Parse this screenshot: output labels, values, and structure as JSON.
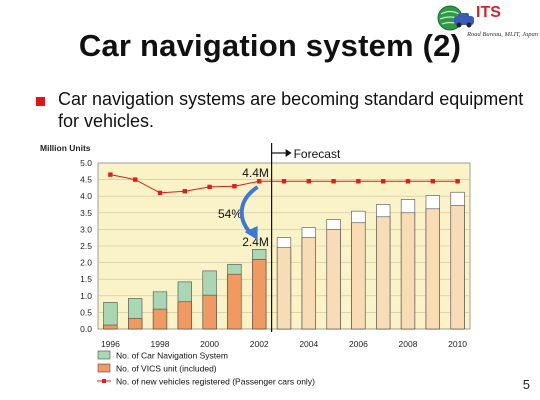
{
  "header": {
    "logo_text": "ITS",
    "logo_subtitle": "Road Bureau, MLIT, Japan"
  },
  "slide": {
    "title": "Car navigation system (2)",
    "bullet": "Car navigation systems are becoming standard equipment for vehicles.",
    "page_number": "5"
  },
  "colors": {
    "nav_fill": "#a9d7b4",
    "vics_fill": "#f09a62",
    "nav_forecast_fill": "#ffffff",
    "vics_forecast_fill": "#f7dcb6",
    "registered_line": "#e31b1b",
    "plot_background": "#fbf3c8",
    "accent_blue": "#3c79d3"
  },
  "chart_data": {
    "type": "bar",
    "ylabel": "Million Units",
    "ylim": [
      0,
      5.0
    ],
    "yticks": [
      "0.0",
      "0.5",
      "1.0",
      "1.5",
      "2.0",
      "2.5",
      "3.0",
      "3.5",
      "4.0",
      "4.5",
      "5.0"
    ],
    "categories": [
      1996,
      1997,
      1998,
      1999,
      2000,
      2001,
      2002,
      2003,
      2004,
      2005,
      2006,
      2007,
      2008,
      2009,
      2010
    ],
    "xtick_labels": [
      "1996",
      "1998",
      "2000",
      "2002",
      "2004",
      "2006",
      "2008",
      "2010"
    ],
    "forecast_from": 2003,
    "series": [
      {
        "name": "No. of Car Navigation System",
        "type": "bar",
        "values": [
          0.8,
          0.92,
          1.12,
          1.42,
          1.75,
          1.95,
          2.4,
          2.75,
          3.05,
          3.3,
          3.55,
          3.75,
          3.9,
          4.02,
          4.12
        ]
      },
      {
        "name": "No. of VICS unit (included)",
        "type": "bar",
        "values": [
          0.12,
          0.32,
          0.6,
          0.82,
          1.02,
          1.65,
          2.1,
          2.45,
          2.75,
          3.0,
          3.2,
          3.38,
          3.5,
          3.62,
          3.72
        ]
      },
      {
        "name": "No. of new vehicles registered (Passenger cars only)",
        "type": "line",
        "values": [
          4.65,
          4.5,
          4.1,
          4.15,
          4.28,
          4.3,
          4.45,
          4.45,
          4.45,
          4.45,
          4.45,
          4.45,
          4.45,
          4.45,
          4.45
        ]
      }
    ],
    "annotations": {
      "forecast_label": "Forecast",
      "top_value": "4.4M",
      "bottom_value": "2.4M",
      "percent": "54%"
    }
  }
}
